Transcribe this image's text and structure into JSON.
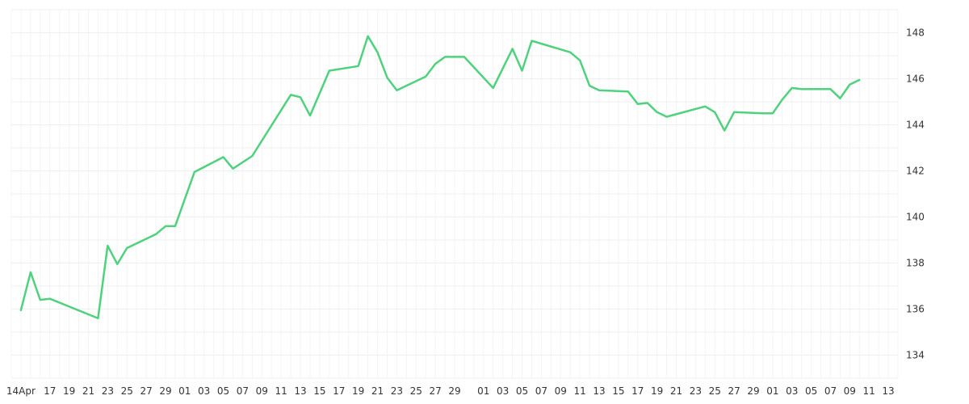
{
  "chart_data": {
    "type": "line",
    "title": "",
    "xlabel": "",
    "ylabel": "",
    "x_axis": "date",
    "ylim": [
      133,
      149
    ],
    "y_ticks": [
      134,
      136,
      138,
      140,
      142,
      144,
      146,
      148
    ],
    "x_tick_dates": [
      "2025-04-14",
      "2025-04-17",
      "2025-04-19",
      "2025-04-21",
      "2025-04-23",
      "2025-04-25",
      "2025-04-27",
      "2025-04-29",
      "2025-05-01",
      "2025-05-03",
      "2025-05-05",
      "2025-05-07",
      "2025-05-09",
      "2025-05-11",
      "2025-05-13",
      "2025-05-15",
      "2025-05-17",
      "2025-05-19",
      "2025-05-21",
      "2025-05-23",
      "2025-05-25",
      "2025-05-27",
      "2025-05-29",
      "2025-06-01",
      "2025-06-03",
      "2025-06-05",
      "2025-06-07",
      "2025-06-09",
      "2025-06-11",
      "2025-06-13",
      "2025-06-15",
      "2025-06-17",
      "2025-06-19",
      "2025-06-21",
      "2025-06-23",
      "2025-06-25",
      "2025-06-27",
      "2025-06-29",
      "2025-07-01",
      "2025-07-03",
      "2025-07-05",
      "2025-07-07",
      "2025-07-09",
      "2025-07-11",
      "2025-07-13"
    ],
    "x_tick_labels": [
      "14Apr",
      "17",
      "19",
      "21",
      "23",
      "25",
      "27",
      "29",
      "01",
      "03",
      "05",
      "07",
      "09",
      "11",
      "13",
      "15",
      "17",
      "19",
      "21",
      "23",
      "25",
      "27",
      "29",
      "01",
      "03",
      "05",
      "07",
      "09",
      "11",
      "13",
      "15",
      "17",
      "19",
      "21",
      "23",
      "25",
      "27",
      "29",
      "01",
      "03",
      "05",
      "07",
      "09",
      "11",
      "13"
    ],
    "grid": true,
    "legend": "none",
    "series": [
      {
        "color": "#4fd17d",
        "points": [
          [
            "2025-04-14",
            135.95
          ],
          [
            "2025-04-15",
            137.6
          ],
          [
            "2025-04-16",
            136.4
          ],
          [
            "2025-04-17",
            136.45
          ],
          [
            "2025-04-22",
            135.6
          ],
          [
            "2025-04-23",
            138.75
          ],
          [
            "2025-04-24",
            137.95
          ],
          [
            "2025-04-25",
            138.65
          ],
          [
            "2025-04-28",
            139.25
          ],
          [
            "2025-04-29",
            139.6
          ],
          [
            "2025-04-30",
            139.6
          ],
          [
            "2025-05-02",
            141.95
          ],
          [
            "2025-05-05",
            142.6
          ],
          [
            "2025-05-06",
            142.1
          ],
          [
            "2025-05-08",
            142.65
          ],
          [
            "2025-05-12",
            145.3
          ],
          [
            "2025-05-13",
            145.2
          ],
          [
            "2025-05-14",
            144.4
          ],
          [
            "2025-05-16",
            146.35
          ],
          [
            "2025-05-19",
            146.55
          ],
          [
            "2025-05-20",
            147.85
          ],
          [
            "2025-05-21",
            147.15
          ],
          [
            "2025-05-22",
            146.05
          ],
          [
            "2025-05-23",
            145.5
          ],
          [
            "2025-05-26",
            146.1
          ],
          [
            "2025-05-27",
            146.65
          ],
          [
            "2025-05-28",
            146.95
          ],
          [
            "2025-05-30",
            146.95
          ],
          [
            "2025-06-02",
            145.6
          ],
          [
            "2025-06-04",
            147.3
          ],
          [
            "2025-06-05",
            146.35
          ],
          [
            "2025-06-06",
            147.65
          ],
          [
            "2025-06-10",
            147.15
          ],
          [
            "2025-06-11",
            146.8
          ],
          [
            "2025-06-12",
            145.7
          ],
          [
            "2025-06-13",
            145.5
          ],
          [
            "2025-06-16",
            145.45
          ],
          [
            "2025-06-17",
            144.9
          ],
          [
            "2025-06-18",
            144.95
          ],
          [
            "2025-06-19",
            144.55
          ],
          [
            "2025-06-20",
            144.35
          ],
          [
            "2025-06-24",
            144.8
          ],
          [
            "2025-06-25",
            144.55
          ],
          [
            "2025-06-26",
            143.75
          ],
          [
            "2025-06-27",
            144.55
          ],
          [
            "2025-06-30",
            144.5
          ],
          [
            "2025-07-01",
            144.5
          ],
          [
            "2025-07-02",
            145.1
          ],
          [
            "2025-07-03",
            145.6
          ],
          [
            "2025-07-04",
            145.55
          ],
          [
            "2025-07-07",
            145.55
          ],
          [
            "2025-07-08",
            145.15
          ],
          [
            "2025-07-09",
            145.75
          ],
          [
            "2025-07-10",
            145.95
          ]
        ]
      }
    ]
  }
}
